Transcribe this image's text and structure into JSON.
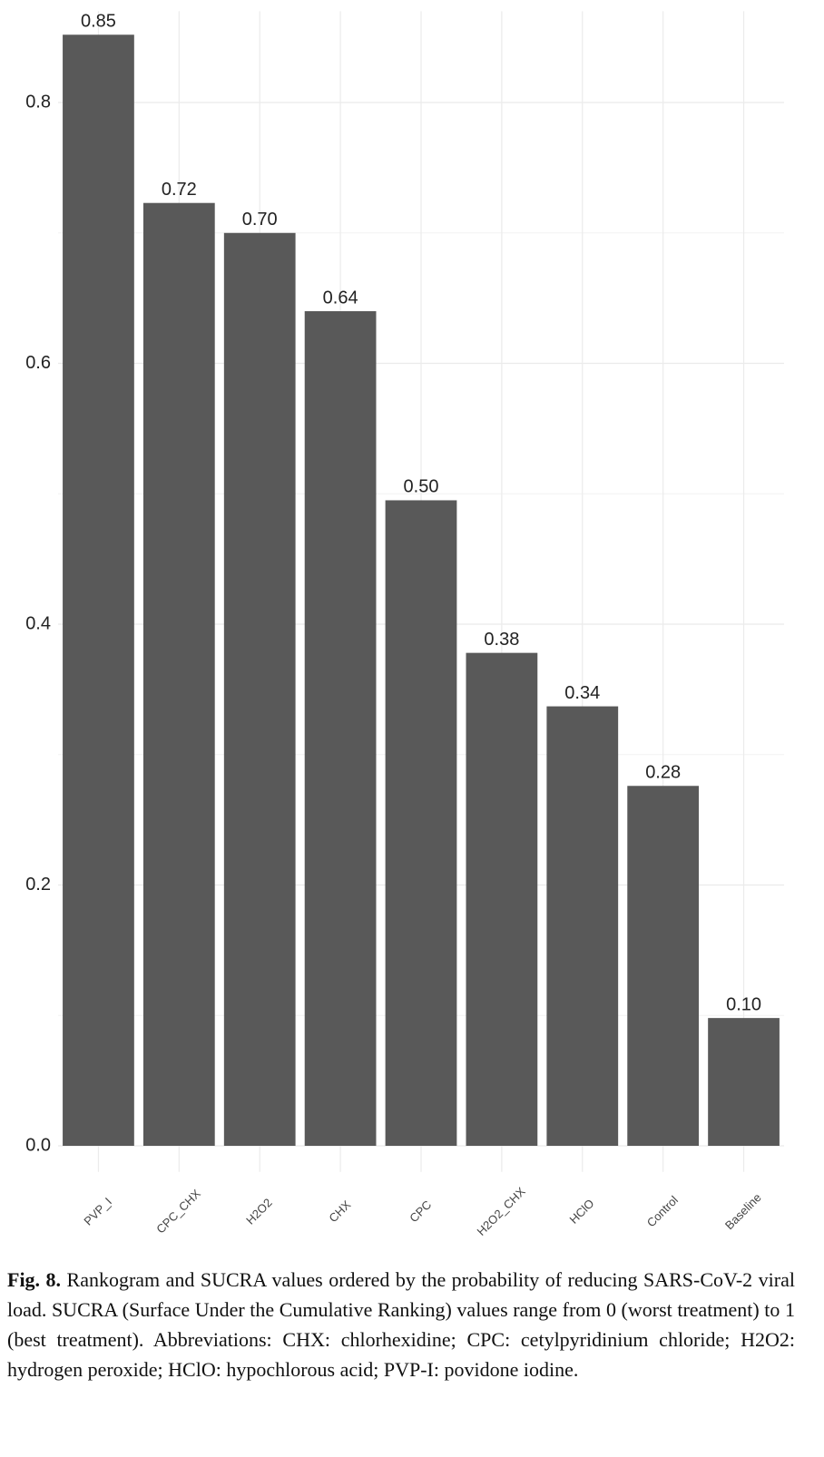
{
  "chart_data": {
    "type": "bar",
    "categories": [
      "PVP_I",
      "CPC_CHX",
      "H2O2",
      "CHX",
      "CPC",
      "H2O2_CHX",
      "HClO",
      "Control",
      "Baseline"
    ],
    "values": [
      0.852,
      0.723,
      0.7,
      0.64,
      0.495,
      0.378,
      0.337,
      0.276,
      0.098
    ],
    "value_labels": [
      "0.85",
      "0.72",
      "0.70",
      "0.64",
      "0.50",
      "0.38",
      "0.34",
      "0.28",
      "0.10"
    ],
    "color": "#595959",
    "ylim": [
      -0.02,
      0.87
    ],
    "yticks": [
      {
        "value": 0,
        "label": "0.0"
      },
      0.2,
      0.4,
      0.6,
      0.8
    ],
    "yminorticks": [
      0.1,
      0.3,
      0.5,
      0.7
    ],
    "grid": true
  },
  "figure_label": "Fig. 8.",
  "caption": "Rankogram and SUCRA values ordered by the probability of reducing SARS-CoV-2 viral load. SUCRA (Surface Under the Cumulative Ranking) values range from 0 (worst treatment) to 1 (best treatment). Abbreviations: CHX: chlorhexidine; CPC: cetylpyridinium chloride; H2O2: hydrogen peroxide; HClO: hypochlorous acid; PVP-I: povidone iodine."
}
